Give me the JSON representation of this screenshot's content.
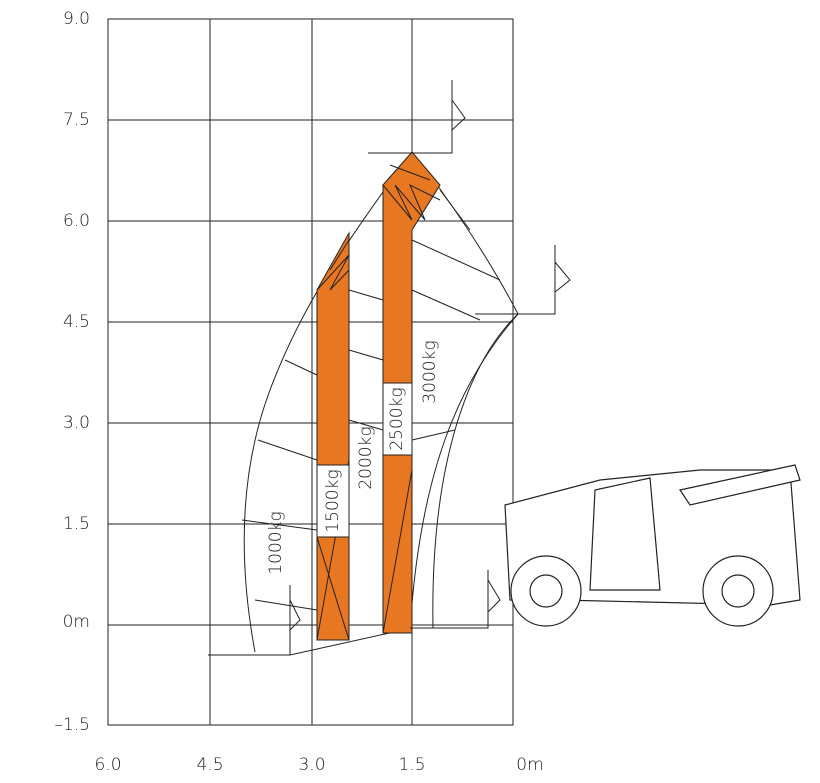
{
  "y_axis": {
    "labels": [
      "9.0",
      "7.5",
      "6.0",
      "4.5",
      "3.0",
      "1.5",
      "0m",
      "–1.5"
    ]
  },
  "x_axis": {
    "labels": [
      "6.0",
      "4.5",
      "3.0",
      "1.5",
      "0m"
    ]
  },
  "capacities": [
    "1000kg",
    "1500kg",
    "2000kg",
    "2500kg",
    "3000kg"
  ]
}
